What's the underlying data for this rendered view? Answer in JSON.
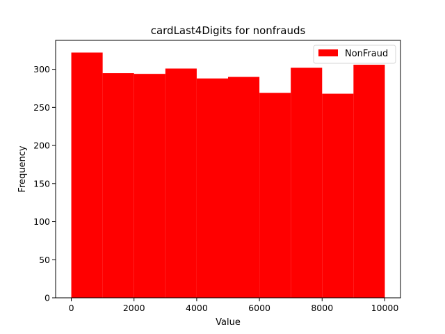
{
  "chart_data": {
    "type": "bar",
    "title": "cardLast4Digits for nonfrauds",
    "xlabel": "Value",
    "ylabel": "Frequency",
    "bin_edges": [
      0,
      1000,
      2000,
      3000,
      4000,
      5000,
      6000,
      7000,
      8000,
      9000,
      10000
    ],
    "series": [
      {
        "name": "NonFraud",
        "color": "#ff0000",
        "values": [
          322,
          295,
          294,
          301,
          288,
          290,
          269,
          302,
          268,
          306
        ]
      }
    ],
    "xlim": [
      -500,
      10500
    ],
    "ylim": [
      0,
      338
    ],
    "xticks": [
      0,
      2000,
      4000,
      6000,
      8000,
      10000
    ],
    "yticks": [
      0,
      50,
      100,
      150,
      200,
      250,
      300
    ],
    "grid": false,
    "legend_position": "top-right"
  }
}
